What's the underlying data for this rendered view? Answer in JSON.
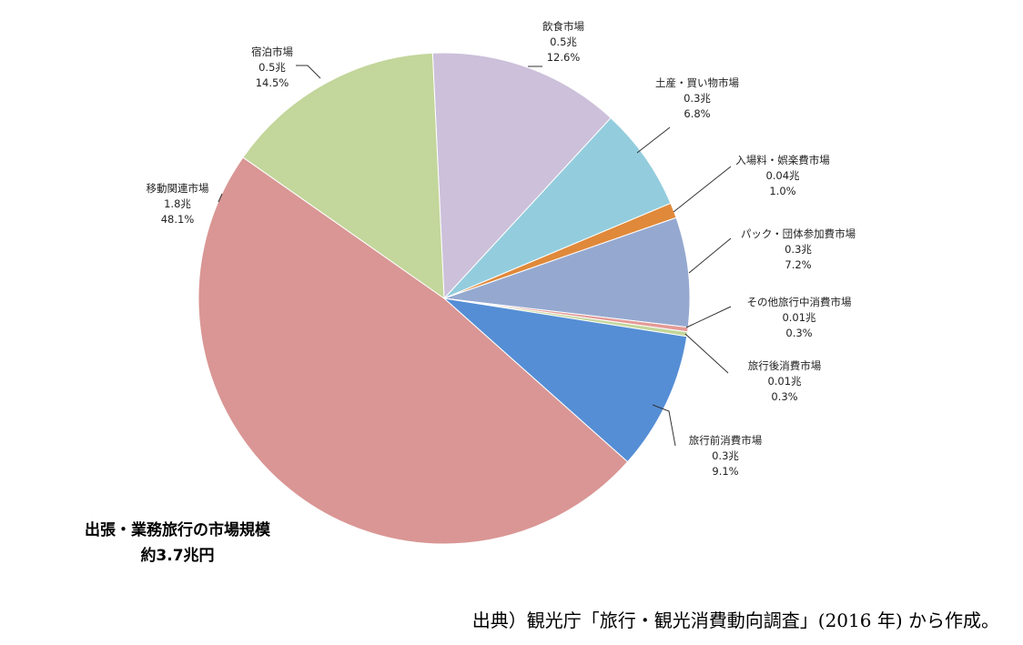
{
  "chart_data": {
    "type": "pie",
    "title_lines": [
      "出張・業務旅行の市場規模",
      "約3.7兆円"
    ],
    "slices": [
      {
        "label": "飲食市場",
        "value_text": "0.5兆",
        "pct_text": "12.6%",
        "pct": 12.6,
        "color": "#CCC0DA"
      },
      {
        "label": "土産・買い物市場",
        "value_text": "0.3兆",
        "pct_text": "6.8%",
        "pct": 6.8,
        "color": "#93CDDD"
      },
      {
        "label": "入場料・娯楽費市場",
        "value_text": "0.04兆",
        "pct_text": "1.0%",
        "pct": 1.0,
        "color": "#E0893A"
      },
      {
        "label": "パック・団体参加費市場",
        "value_text": "0.3兆",
        "pct_text": "7.2%",
        "pct": 7.2,
        "color": "#95A9D0"
      },
      {
        "label": "その他旅行中消費市場",
        "value_text": "0.01兆",
        "pct_text": "0.3%",
        "pct": 0.3,
        "color": "#E49A96"
      },
      {
        "label": "旅行後消費市場",
        "value_text": "0.01兆",
        "pct_text": "0.3%",
        "pct": 0.3,
        "color": "#C3D69B"
      },
      {
        "label": "旅行前消費市場",
        "value_text": "0.3兆",
        "pct_text": "9.1%",
        "pct": 9.1,
        "color": "#558ED5"
      },
      {
        "label": "移動関連市場",
        "value_text": "1.8兆",
        "pct_text": "48.1%",
        "pct": 48.1,
        "color": "#D99694"
      },
      {
        "label": "宿泊市場",
        "value_text": "0.5兆",
        "pct_text": "14.5%",
        "pct": 14.5,
        "color": "#C3D69B"
      }
    ]
  },
  "source": "出典）観光庁「旅行・観光消費動向調査」(2016 年) から作成。"
}
